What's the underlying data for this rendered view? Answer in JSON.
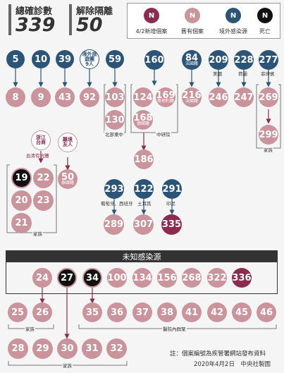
{
  "stats": {
    "confirmed_label": "總確診數",
    "confirmed_value": "339",
    "released_label": "解除隔離",
    "released_value": "50"
  },
  "legend": {
    "items": [
      {
        "glyph": "N",
        "label": "4/2新增個案",
        "color": "#8a2c4e"
      },
      {
        "glyph": "N",
        "label": "舊有個案",
        "color": "#c9949c"
      },
      {
        "glyph": "N",
        "label": "境外感染源",
        "color": "#2b5477"
      },
      {
        "glyph": "N",
        "label": "死亡",
        "color": "#111111"
      }
    ]
  },
  "colors": {
    "new_case": "#8a2c4e",
    "old_case": "#c9949c",
    "overseas_source": "#2b5477",
    "death": "#111111"
  },
  "top_sources": [
    {
      "id": "5"
    },
    {
      "id": "10"
    },
    {
      "id": "39"
    },
    {
      "id": "境外旅遊團",
      "line2": "9人"
    },
    {
      "id": "59"
    },
    {
      "id": "160"
    },
    {
      "id": "84",
      "sub": "法國籍"
    },
    {
      "id": "209"
    },
    {
      "id": "228"
    },
    {
      "id": "277"
    }
  ],
  "top_source_notes": {
    "n209": "美國",
    "n228": "荷蘭",
    "n277": "菲律賓"
  },
  "row2": [
    {
      "id": "8"
    },
    {
      "id": "9"
    },
    {
      "id": "43"
    },
    {
      "id": "92"
    },
    {
      "id": "103"
    },
    {
      "id": "124"
    },
    {
      "id": "169",
      "sub": "奧地利籍"
    },
    {
      "id": "216",
      "sub": "法國籍"
    },
    {
      "id": "246"
    },
    {
      "id": "247"
    },
    {
      "id": "269"
    }
  ],
  "row3": [
    {
      "id": "130"
    },
    {
      "id": "168",
      "sub": "德國籍"
    },
    {
      "id": "299"
    }
  ],
  "case186": "186",
  "groups": {
    "beibu": "北部東中",
    "zhongyan": "中研院",
    "family_right": "家族",
    "family_left": "家族",
    "family_bottom1": "家族",
    "family_bottom2": "家族",
    "hospital": "醫院內群聚"
  },
  "zhejiang": {
    "line1": "浙江",
    "line2": "台商",
    "note": "血清有抗體"
  },
  "jingjing": {
    "line1": "離境",
    "line2": "友人"
  },
  "family_cluster": [
    {
      "id": "19"
    },
    {
      "id": "22"
    },
    {
      "id": "20"
    },
    {
      "id": "23"
    },
    {
      "id": "21"
    }
  ],
  "case50": {
    "id": "50",
    "sub": "泰國籍"
  },
  "mid_sources": [
    {
      "id": "293",
      "note": "葡萄牙、西班牙"
    },
    {
      "id": "122",
      "note": "土耳其"
    },
    {
      "id": "291",
      "note": "印尼"
    }
  ],
  "mid_cases": [
    {
      "id": "289"
    },
    {
      "id": "307"
    },
    {
      "id": "335"
    }
  ],
  "unknown": {
    "title": "未知感染源",
    "cases": [
      "24",
      "27",
      "34",
      "100",
      "134",
      "156",
      "268",
      "322",
      "336"
    ]
  },
  "bottom_row1": [
    "25",
    "26",
    "35",
    "36",
    "37",
    "38",
    "41",
    "42",
    "45",
    "46"
  ],
  "bottom_row2": [
    "28",
    "29",
    "30",
    "31",
    "32"
  ],
  "footnote": {
    "line1": "註：個案編號為疾管署網站發布資料",
    "line2": "2020年4月2日　中央社製圖"
  }
}
